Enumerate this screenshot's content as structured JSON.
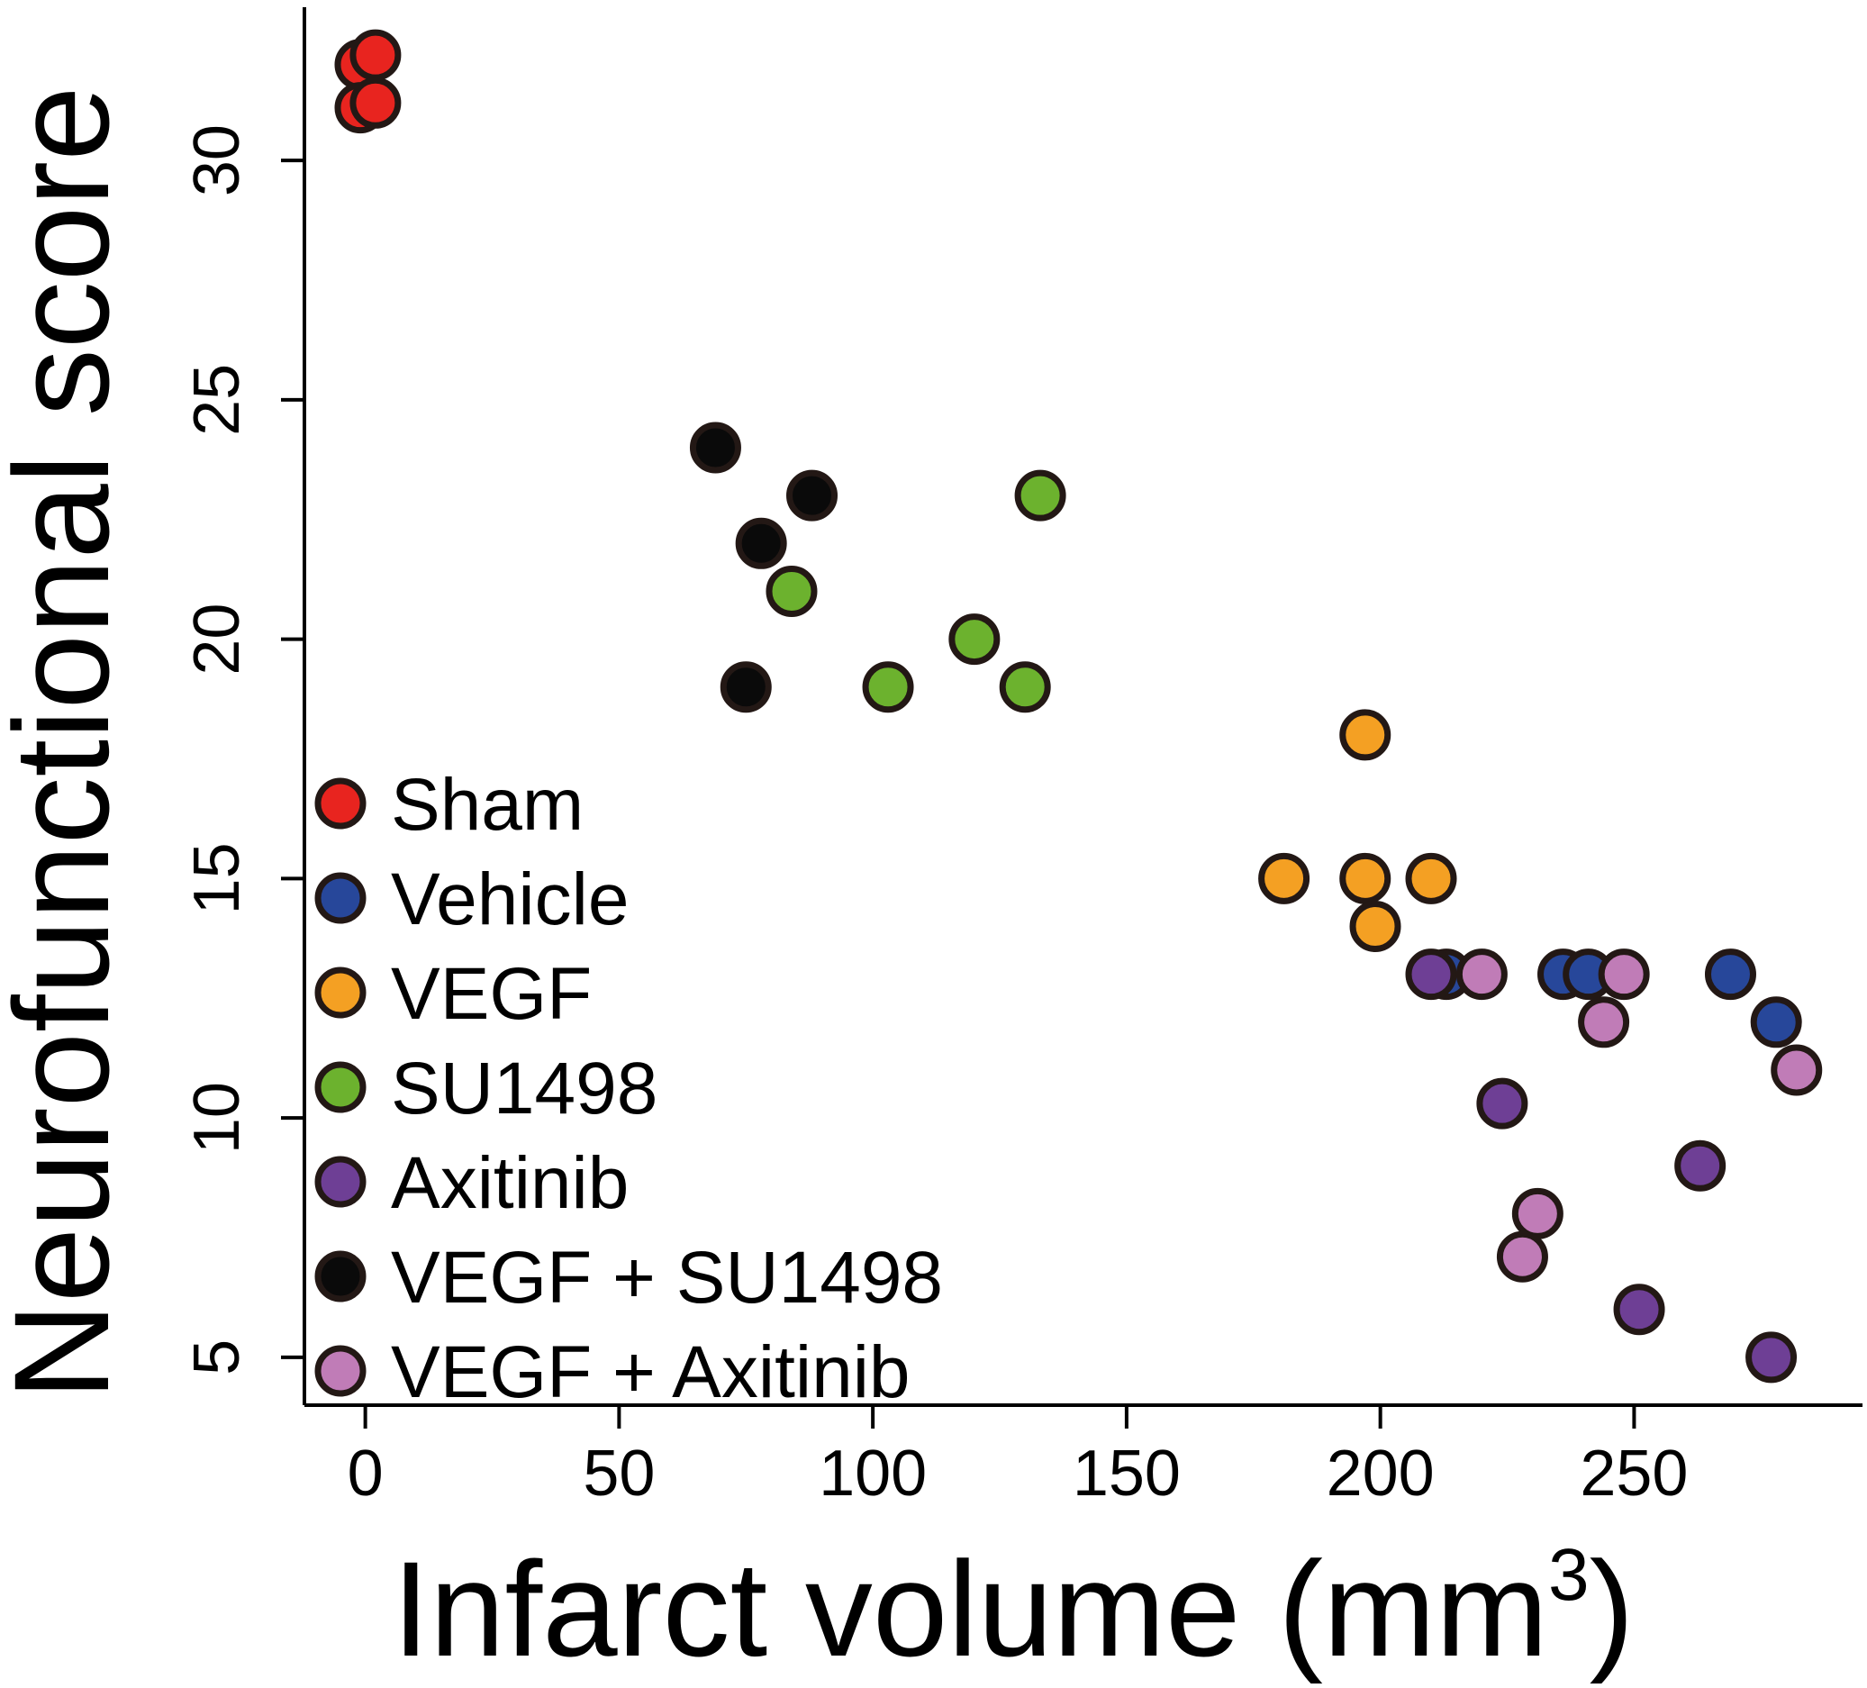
{
  "chart_data": {
    "type": "scatter",
    "title": "",
    "xlabel": "Infarct volume (mm",
    "xlabel_superscript": "3",
    "xlabel_suffix": ")",
    "ylabel": "Neurofunctional score",
    "xlim": [
      -12,
      295
    ],
    "ylim": [
      4,
      33.2
    ],
    "x_ticks": [
      0,
      50,
      100,
      150,
      200,
      250
    ],
    "y_ticks": [
      5,
      10,
      15,
      20,
      25,
      30
    ],
    "x_tick_labels": [
      "0",
      "50",
      "100",
      "150",
      "200",
      "250"
    ],
    "y_tick_labels": [
      "5",
      "10",
      "15",
      "20",
      "25",
      "30"
    ],
    "grid": false,
    "legend_position": "bottom-left",
    "series": [
      {
        "name": "Sham",
        "color": "#e8241f",
        "points": [
          [
            -1,
            32
          ],
          [
            2,
            32.2
          ],
          [
            -1,
            31.1
          ],
          [
            2,
            31.2
          ]
        ]
      },
      {
        "name": "Vehicle",
        "color": "#27479a",
        "points": [
          [
            213,
            13
          ],
          [
            236,
            13
          ],
          [
            241,
            13
          ],
          [
            269,
            13
          ],
          [
            278,
            12
          ]
        ]
      },
      {
        "name": "VEGF",
        "color": "#f4a023",
        "points": [
          [
            197,
            18
          ],
          [
            181,
            15
          ],
          [
            197,
            15
          ],
          [
            210,
            15
          ],
          [
            199,
            14
          ]
        ]
      },
      {
        "name": "SU1498",
        "color": "#6cb22e",
        "points": [
          [
            133,
            23
          ],
          [
            84,
            21
          ],
          [
            120,
            20
          ],
          [
            103,
            19
          ],
          [
            130,
            19
          ]
        ]
      },
      {
        "name": "Axitinib",
        "color": "#6e3f95",
        "points": [
          [
            210,
            13
          ],
          [
            224,
            10.3
          ],
          [
            263,
            9
          ],
          [
            251,
            6
          ],
          [
            277,
            5
          ]
        ]
      },
      {
        "name": "VEGF + SU1498",
        "color": "#0a0a0a",
        "points": [
          [
            69,
            24
          ],
          [
            88,
            23
          ],
          [
            78,
            22
          ],
          [
            75,
            19
          ]
        ]
      },
      {
        "name": "VEGF + Axitinib",
        "color": "#c07cb7",
        "points": [
          [
            220,
            13
          ],
          [
            248,
            13
          ],
          [
            244,
            12
          ],
          [
            282,
            11
          ],
          [
            231,
            8
          ],
          [
            228,
            7.1
          ]
        ]
      }
    ]
  }
}
